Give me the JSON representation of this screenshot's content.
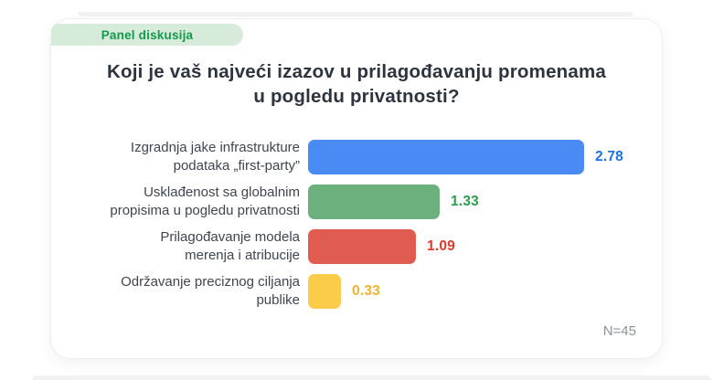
{
  "badge": {
    "label": "Panel diskusija"
  },
  "title_lines": [
    "Koji je vaš najveći izazov u prilagođavanju promenama",
    "u pogledu privatnosti?"
  ],
  "chart_data": {
    "type": "bar",
    "orientation": "horizontal",
    "title": "Koji je vaš najveći izazov u prilagođavanju promenama u pogledu privatnosti?",
    "categories": [
      "Izgradnja jake infrastrukture podataka „first-party”",
      "Usklađenost sa globalnim propisima u pogledu privatnosti",
      "Prilagođavanje modela merenja i atribucije",
      "Održavanje preciznog ciljanja publike"
    ],
    "category_lines": [
      [
        "Izgradnja jake infrastrukture",
        "podataka „first-party”"
      ],
      [
        "Usklađenost sa globalnim",
        "propisima u pogledu privatnosti"
      ],
      [
        "Prilagođavanje modela",
        "merenja i atribucije"
      ],
      [
        "Održavanje preciznog ciljanja",
        "publike"
      ]
    ],
    "values": [
      2.78,
      1.33,
      1.09,
      0.33
    ],
    "value_labels": [
      "2.78",
      "1.33",
      "1.09",
      "0.33"
    ],
    "bar_colors": [
      "#4A8AF4",
      "#6CB17D",
      "#E15C50",
      "#FBCC49"
    ],
    "value_colors": [
      "#1A73E8",
      "#2E9C4D",
      "#E2382B",
      "#F2B32E"
    ],
    "xlim": [
      0,
      2.9
    ],
    "grid": false,
    "legend": false,
    "sample_size": "N=45"
  },
  "colors": {
    "badge_background": "#D7EBDA",
    "badge_text": "#0F9B49",
    "title_text": "#2D3440",
    "label_text": "#3F4550",
    "footnote_text": "#8C929B",
    "card_background": "#FFFFFF"
  }
}
